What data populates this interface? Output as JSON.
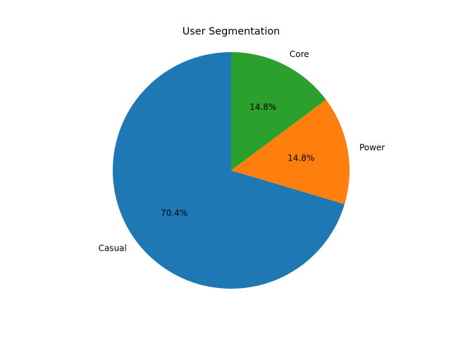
{
  "chart_data": {
    "type": "pie",
    "title": "User Segmentation",
    "categories": [
      "Casual",
      "Power",
      "Core"
    ],
    "values": [
      70.4,
      14.8,
      14.8
    ],
    "value_labels": [
      "70.4%",
      "14.8%",
      "14.8%"
    ],
    "colors": [
      "#1f77b4",
      "#ff7f0e",
      "#2ca02c"
    ],
    "start_angle_deg": 90,
    "direction": "counterclockwise",
    "legend": "none"
  }
}
